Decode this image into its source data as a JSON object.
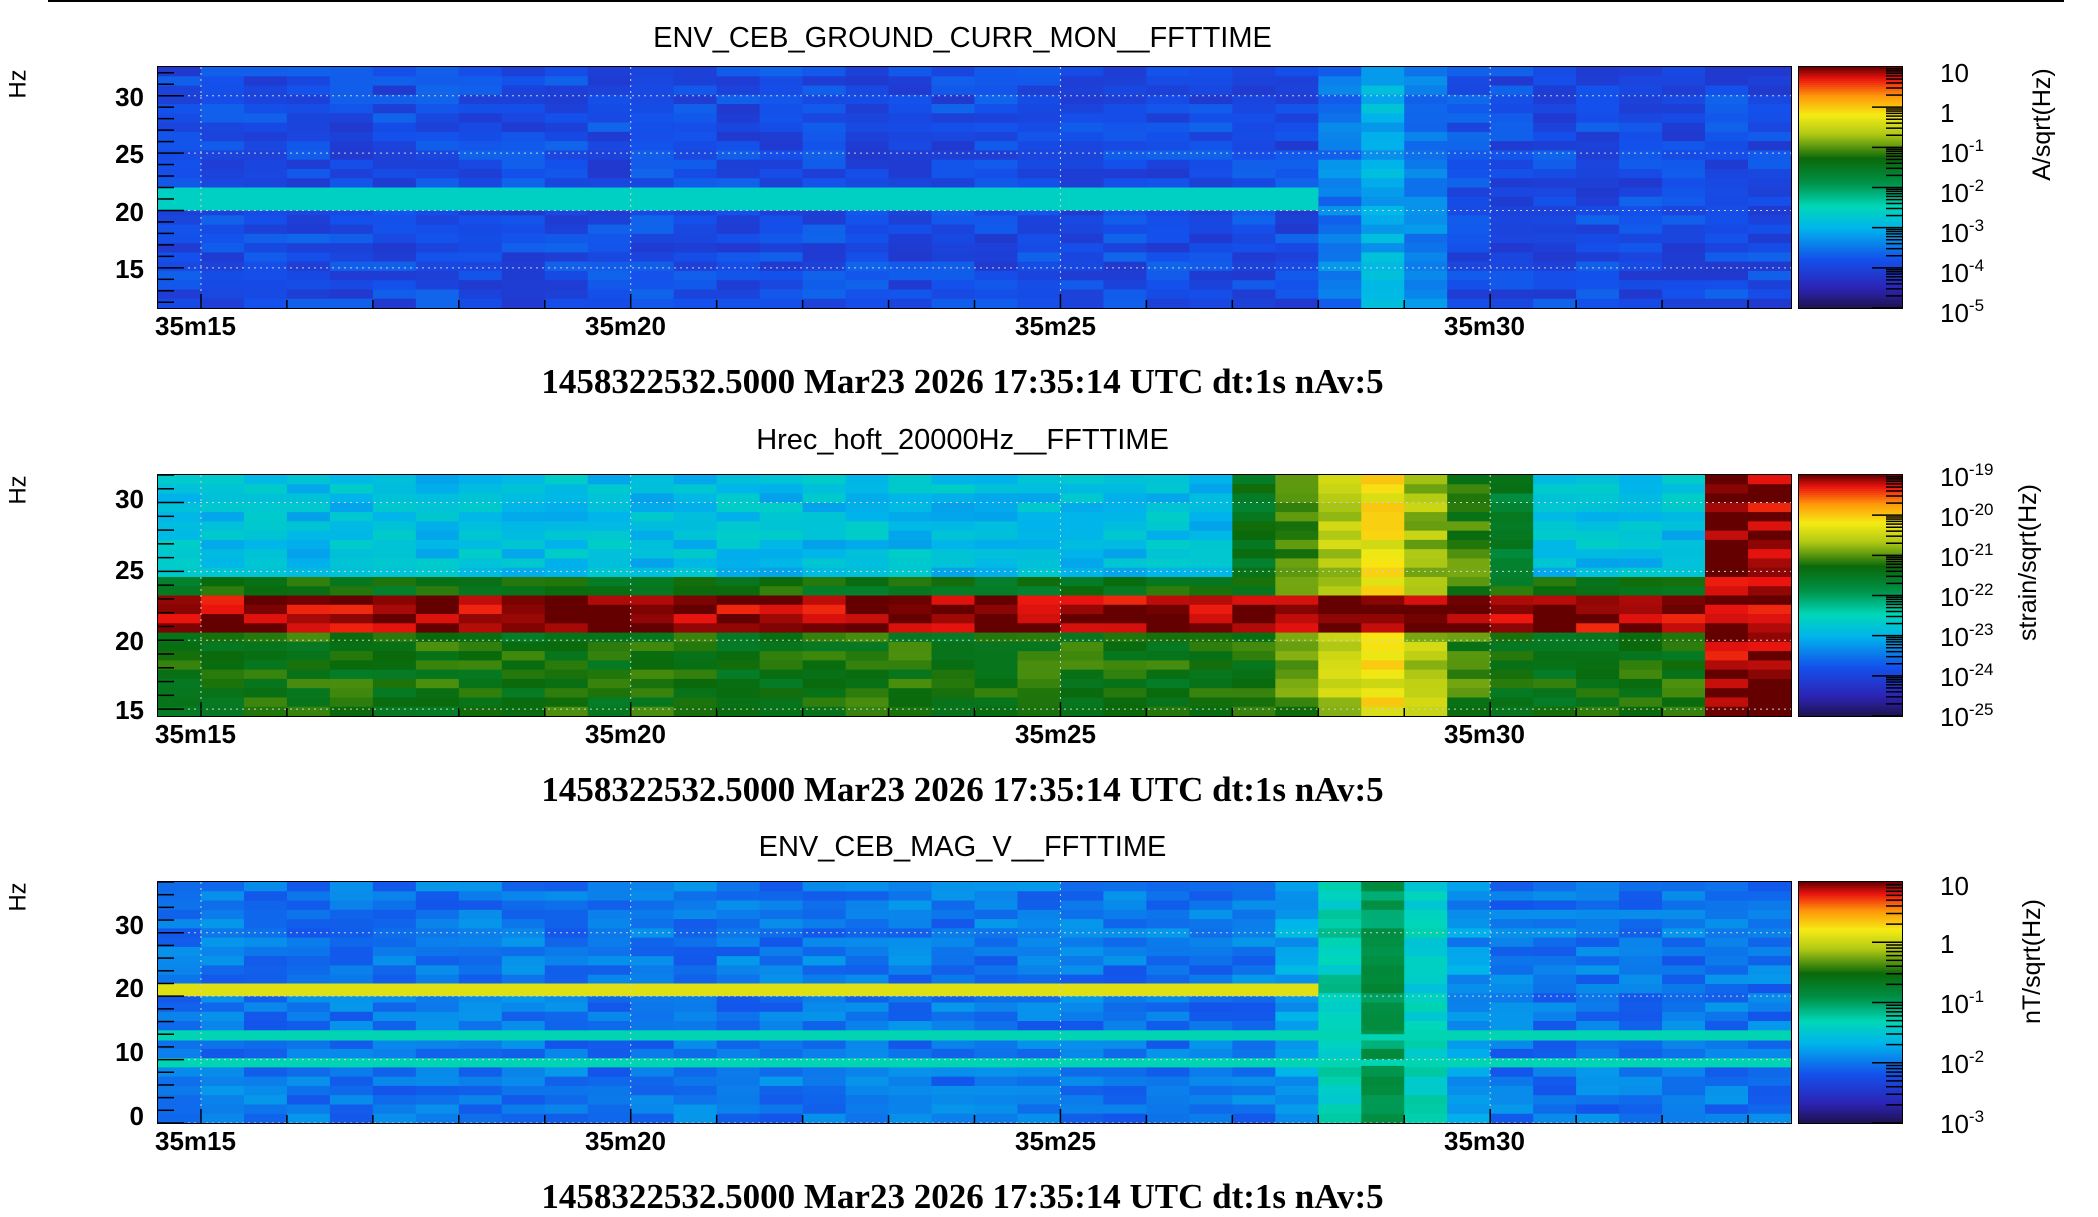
{
  "chart_data": [
    {
      "type": "heatmap",
      "title": "ENV_CEB_GROUND_CURR_MON__FFTTIME",
      "ylabel": "Hz",
      "ylim": [
        11.5,
        32.5
      ],
      "yticks": [
        "30",
        "25",
        "20",
        "15"
      ],
      "ytick_values": [
        30,
        25,
        20,
        15
      ],
      "xlabel": "",
      "xticks": [
        "35m15",
        "35m20",
        "35m25",
        "35m30"
      ],
      "x_range_s": [
        "35m14.5",
        "35m33.5"
      ],
      "colorbar_label": "A/sqrt(Hz)",
      "colorbar_ticks": [
        {
          "base": "10",
          "exp": ""
        },
        {
          "base": "1",
          "exp": ""
        },
        {
          "base": "10",
          "exp": "-1"
        },
        {
          "base": "10",
          "exp": "-2"
        },
        {
          "base": "10",
          "exp": "-3"
        },
        {
          "base": "10",
          "exp": "-4"
        },
        {
          "base": "10",
          "exp": "-5"
        }
      ],
      "colorbar_range_log10": [
        -5,
        1
      ],
      "background_log10": -3.9,
      "lines": [
        {
          "f_min": 20,
          "f_max": 22,
          "log10": -2.6,
          "until_s": 28
        }
      ],
      "transient": {
        "t_s": 28.8,
        "log10": -3.0
      },
      "footer": "1458322532.5000 Mar23 2026 17:35:14 UTC dt:1s nAv:5"
    },
    {
      "type": "heatmap",
      "title": "Hrec_hoft_20000Hz__FFTTIME",
      "ylabel": "Hz",
      "ylim": [
        14.5,
        32
      ],
      "yticks": [
        "30",
        "25",
        "20",
        "15"
      ],
      "ytick_values": [
        30,
        25,
        20,
        15
      ],
      "xlabel": "",
      "xticks": [
        "35m15",
        "35m20",
        "35m25",
        "35m30"
      ],
      "x_range_s": [
        "35m14.5",
        "35m33.5"
      ],
      "colorbar_label": "strain/sqrt(Hz)",
      "colorbar_ticks": [
        {
          "base": "10",
          "exp": "-19"
        },
        {
          "base": "10",
          "exp": "-20"
        },
        {
          "base": "10",
          "exp": "-21"
        },
        {
          "base": "10",
          "exp": "-22"
        },
        {
          "base": "10",
          "exp": "-23"
        },
        {
          "base": "10",
          "exp": "-24"
        },
        {
          "base": "10",
          "exp": "-25"
        }
      ],
      "colorbar_range_log10": [
        -25,
        -19
      ],
      "regions": [
        {
          "f_min": 24.5,
          "f_max": 32,
          "log10": -22.9
        },
        {
          "f_min": 23,
          "f_max": 24.5,
          "log10": -21.4
        },
        {
          "f_min": 20.5,
          "f_max": 23,
          "log10": -19.1
        },
        {
          "f_min": 14.5,
          "f_max": 20.5,
          "log10": -21.3
        }
      ],
      "transient": {
        "t_s": 28.7,
        "log10": -20.2
      },
      "final_column_log10": -19.1,
      "footer": "1458322532.5000 Mar23 2026 17:35:14 UTC dt:1s nAv:5"
    },
    {
      "type": "heatmap",
      "title": "ENV_CEB_MAG_V__FFTTIME",
      "ylabel": "Hz",
      "ylim": [
        0,
        38
      ],
      "yticks": [
        "30",
        "20",
        "10",
        "0"
      ],
      "ytick_values": [
        30,
        20,
        10,
        0
      ],
      "xlabel": "",
      "xticks": [
        "35m15",
        "35m20",
        "35m25",
        "35m30"
      ],
      "x_range_s": [
        "35m14.5",
        "35m33.5"
      ],
      "colorbar_label": "nT/sqrt(Hz)",
      "colorbar_ticks": [
        {
          "base": "10",
          "exp": ""
        },
        {
          "base": "1",
          "exp": ""
        },
        {
          "base": "10",
          "exp": "-1"
        },
        {
          "base": "10",
          "exp": "-2"
        },
        {
          "base": "10",
          "exp": "-3"
        }
      ],
      "colorbar_range_log10": [
        -3,
        1
      ],
      "background_log10": -2.0,
      "lines": [
        {
          "f_min": 20,
          "f_max": 22,
          "log10": 0.1,
          "until_s": 28
        },
        {
          "f_min": 13,
          "f_max": 14,
          "log10": -1.3,
          "until_s": 34
        },
        {
          "f_min": 9,
          "f_max": 10,
          "log10": -1.3,
          "until_s": 34
        }
      ],
      "transient": {
        "t_s": 28.7,
        "log10": -0.9
      },
      "footer": "1458322532.5000 Mar23 2026 17:35:14 UTC dt:1s nAv:5"
    }
  ]
}
